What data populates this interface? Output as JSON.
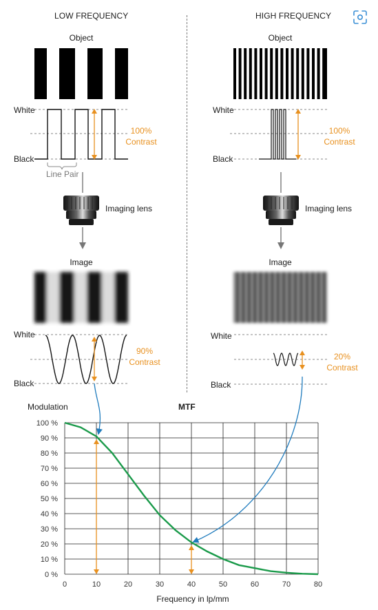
{
  "left": {
    "heading": "LOW FREQUENCY",
    "object_label": "Object",
    "white_label": "White",
    "black_label": "Black",
    "contrast_pct": "100%",
    "contrast_word": "Contrast",
    "line_pair_label": "Line Pair",
    "lens_label": "Imaging lens",
    "image_label": "Image",
    "white_label2": "White",
    "black_label2": "Black",
    "image_contrast_pct": "90%",
    "image_contrast_word": "Contrast"
  },
  "right": {
    "heading": "HIGH FREQUENCY",
    "object_label": "Object",
    "white_label": "White",
    "black_label": "Black",
    "contrast_pct": "100%",
    "contrast_word": "Contrast",
    "lens_label": "Imaging lens",
    "image_label": "Image",
    "white_label2": "White",
    "black_label2": "Black",
    "image_contrast_pct": "20%",
    "image_contrast_word": "Contrast"
  },
  "toolbar": {
    "capture_icon": "focus-capture-icon"
  },
  "colors": {
    "accent": "#e8901e",
    "curve": "#1a9a4a",
    "link": "#1f7bbd"
  },
  "chart_data": {
    "type": "line",
    "title": "MTF",
    "ylabel": "Modulation",
    "xlabel": "Frequency in lp/mm",
    "xlim": [
      0,
      80
    ],
    "ylim": [
      0,
      100
    ],
    "x_ticks": [
      "0",
      "10",
      "20",
      "30",
      "40",
      "50",
      "60",
      "70",
      "80"
    ],
    "y_ticks": [
      "0 %",
      "10 %",
      "20 %",
      "30 %",
      "40 %",
      "50 %",
      "60 %",
      "70 %",
      "80 %",
      "90 %",
      "100 %"
    ],
    "grid": true,
    "series": [
      {
        "x": [
          0,
          5,
          10,
          15,
          20,
          25,
          30,
          35,
          40,
          45,
          50,
          55,
          60,
          65,
          70,
          75,
          80
        ],
        "y": [
          100,
          97,
          91,
          80,
          66,
          52,
          39,
          29,
          21,
          15,
          10,
          6,
          4,
          2,
          1,
          0.3,
          0
        ]
      }
    ],
    "markers": [
      {
        "x": 10,
        "y": 90
      },
      {
        "x": 40,
        "y": 20
      }
    ]
  }
}
